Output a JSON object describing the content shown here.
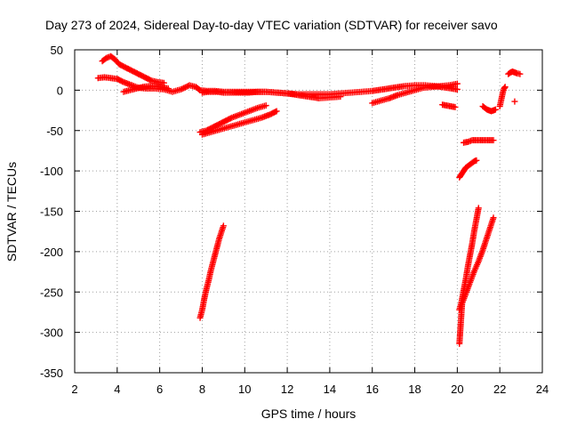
{
  "chart_data": {
    "type": "scatter",
    "title": "Day 273 of 2024, Sidereal Day-to-day VTEC variation (SDTVAR) for receiver savo",
    "xlabel": "GPS time / hours",
    "ylabel": "SDTVAR / TECUs",
    "xlim": [
      2,
      24
    ],
    "ylim": [
      -350,
      50
    ],
    "x_ticks": [
      2,
      4,
      6,
      8,
      10,
      12,
      14,
      16,
      18,
      20,
      22,
      24
    ],
    "y_ticks": [
      50,
      0,
      -50,
      -100,
      -150,
      -200,
      -250,
      -300,
      -350
    ],
    "grid": true,
    "marker": "+",
    "color": "#ff0000",
    "series": [
      {
        "name": "track-main-upper",
        "x": [
          3.1,
          3.4,
          3.7,
          4.0,
          4.3,
          4.7,
          5.0,
          5.4,
          5.8,
          6.2,
          6.6,
          7.0,
          7.4,
          7.7,
          7.9,
          8.2,
          8.6,
          9.0,
          9.5,
          10.0,
          10.5,
          11.0,
          11.5,
          12.0,
          12.5,
          13.0,
          13.5,
          14.0,
          14.5,
          15.0,
          15.5,
          16.0,
          16.5,
          17.0,
          17.5,
          18.0,
          18.5,
          19.0,
          19.5,
          20.0
        ],
        "y": [
          15,
          16,
          15,
          14,
          10,
          6,
          3,
          2,
          2,
          1,
          -2,
          1,
          6,
          4,
          0,
          -1,
          -1,
          -2,
          -2,
          -2,
          -2,
          -2,
          -3,
          -4,
          -5,
          -5,
          -5,
          -5,
          -4,
          -3,
          -2,
          -1,
          1,
          3,
          5,
          6,
          6,
          5,
          3,
          1
        ]
      },
      {
        "name": "track-high-start",
        "x": [
          3.3,
          3.5,
          3.7,
          3.9,
          4.1,
          4.4,
          4.7,
          5.0,
          5.3,
          5.6,
          5.9,
          6.2
        ],
        "y": [
          36,
          40,
          42,
          38,
          32,
          28,
          24,
          20,
          16,
          12,
          10,
          9
        ]
      },
      {
        "name": "track-dip-4h",
        "x": [
          4.3,
          4.6,
          4.9,
          5.2,
          5.5,
          5.8,
          6.1,
          6.4
        ],
        "y": [
          -2,
          0,
          2,
          4,
          5,
          5,
          4,
          2
        ]
      },
      {
        "name": "track-mid-high",
        "x": [
          8.0,
          8.3,
          8.7,
          9.0,
          9.4,
          9.8,
          10.2,
          10.6,
          11.0,
          11.5,
          12.0,
          12.5,
          13.0,
          13.5,
          14.0,
          14.5
        ],
        "y": [
          -3,
          -2,
          -2,
          -3,
          -3,
          -3,
          -3,
          -2,
          -2,
          -3,
          -4,
          -6,
          -8,
          -10,
          -9,
          -8
        ]
      },
      {
        "name": "track-late-afternoon",
        "x": [
          16.0,
          16.4,
          16.8,
          17.2,
          17.6,
          18.0,
          18.4,
          18.8,
          19.2,
          19.6,
          20.0
        ],
        "y": [
          -16,
          -13,
          -10,
          -6,
          -3,
          0,
          3,
          4,
          5,
          6,
          8
        ]
      },
      {
        "name": "track-dropout-19h",
        "x": [
          19.3,
          19.5,
          19.7,
          19.9
        ],
        "y": [
          -18,
          -19,
          -20,
          -21
        ]
      },
      {
        "name": "track-diagonal-a",
        "x": [
          7.9,
          8.2,
          8.5,
          8.8,
          9.1,
          9.4,
          9.7,
          10.0,
          10.3,
          10.6,
          11.0
        ],
        "y": [
          -52,
          -50,
          -46,
          -42,
          -38,
          -34,
          -31,
          -28,
          -25,
          -22,
          -19
        ]
      },
      {
        "name": "track-diagonal-b",
        "x": [
          8.0,
          8.4,
          8.8,
          9.2,
          9.6,
          10.0,
          10.4,
          10.8,
          11.2,
          11.5
        ],
        "y": [
          -55,
          -52,
          -49,
          -46,
          -43,
          -40,
          -37,
          -34,
          -30,
          -26
        ]
      },
      {
        "name": "track-steep-8h",
        "x": [
          7.9,
          8.0,
          8.1,
          8.2,
          8.3,
          8.4,
          8.5,
          8.6,
          8.7,
          8.8,
          8.9,
          9.0
        ],
        "y": [
          -282,
          -272,
          -258,
          -246,
          -236,
          -224,
          -214,
          -204,
          -194,
          -184,
          -176,
          -168
        ]
      },
      {
        "name": "track-evening-a",
        "x": [
          20.1,
          20.2,
          20.3,
          20.4,
          20.5,
          20.6,
          20.7,
          20.8,
          20.9
        ],
        "y": [
          -108,
          -104,
          -100,
          -96,
          -94,
          -92,
          -90,
          -88,
          -87
        ]
      },
      {
        "name": "track-evening-plateau",
        "x": [
          20.3,
          20.5,
          20.7,
          20.9,
          21.1,
          21.3,
          21.5,
          21.7
        ],
        "y": [
          -65,
          -64,
          -62,
          -62,
          -62,
          -62,
          -62,
          -62
        ]
      },
      {
        "name": "track-evening-steep-1",
        "x": [
          20.1,
          20.2,
          20.3,
          20.4,
          20.5,
          20.6,
          20.7,
          20.8,
          20.9,
          21.0
        ],
        "y": [
          -272,
          -262,
          -248,
          -234,
          -218,
          -204,
          -190,
          -174,
          -160,
          -146
        ]
      },
      {
        "name": "track-evening-steep-2",
        "x": [
          20.2,
          20.4,
          20.6,
          20.8,
          21.0,
          21.2,
          21.4,
          21.6,
          21.7
        ],
        "y": [
          -266,
          -252,
          -238,
          -224,
          -212,
          -198,
          -182,
          -166,
          -158
        ]
      },
      {
        "name": "track-evening-drop",
        "x": [
          20.1,
          20.12,
          20.14,
          20.16,
          20.18,
          20.2,
          20.22
        ],
        "y": [
          -314,
          -306,
          -298,
          -290,
          -282,
          -274,
          -266
        ]
      },
      {
        "name": "track-late-21h",
        "x": [
          21.2,
          21.3,
          21.4,
          21.5,
          21.6,
          21.7,
          21.8
        ],
        "y": [
          -20,
          -22,
          -24,
          -25,
          -26,
          -25,
          -24
        ]
      },
      {
        "name": "track-late-22h",
        "x": [
          22.0,
          22.05,
          22.1,
          22.15,
          22.2,
          22.25
        ],
        "y": [
          -20,
          -14,
          -8,
          -2,
          2,
          4
        ]
      },
      {
        "name": "track-final",
        "x": [
          22.4,
          22.5,
          22.6,
          22.7,
          22.8,
          22.95
        ],
        "y": [
          20,
          22,
          23,
          22,
          21,
          20
        ]
      },
      {
        "name": "isolated",
        "x": [
          22.7
        ],
        "y": [
          -14
        ]
      }
    ]
  }
}
